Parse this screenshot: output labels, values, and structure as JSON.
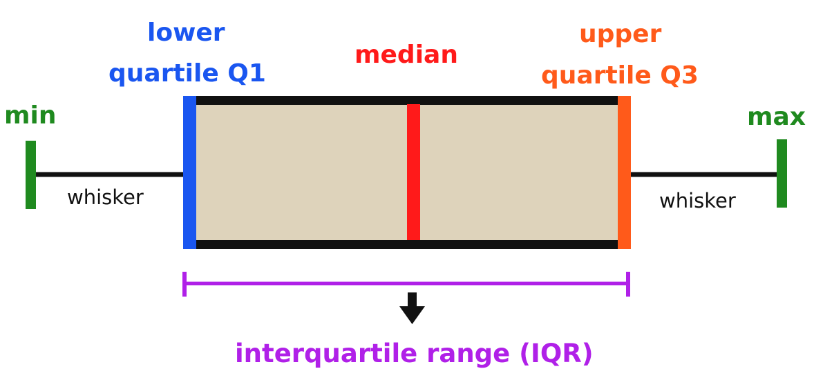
{
  "labels": {
    "lower_q1_line1": "lower",
    "lower_q1_line2": "quartile Q1",
    "median": "median",
    "upper_q3_line1": "upper",
    "upper_q3_line2": "quartile Q3",
    "min": "min",
    "max": "max",
    "whisker_left": "whisker",
    "whisker_right": "whisker",
    "iqr": "interquartile range (IQR)"
  },
  "colors": {
    "lower_q1": "#1a56f0",
    "median": "#ff1a1a",
    "upper_q3": "#ff5a1a",
    "min_max": "#1f8a1f",
    "iqr": "#b020e8",
    "box_fill": "#ded3bb",
    "box_border": "#111111",
    "whisker": "#111111",
    "arrow": "#111111"
  }
}
